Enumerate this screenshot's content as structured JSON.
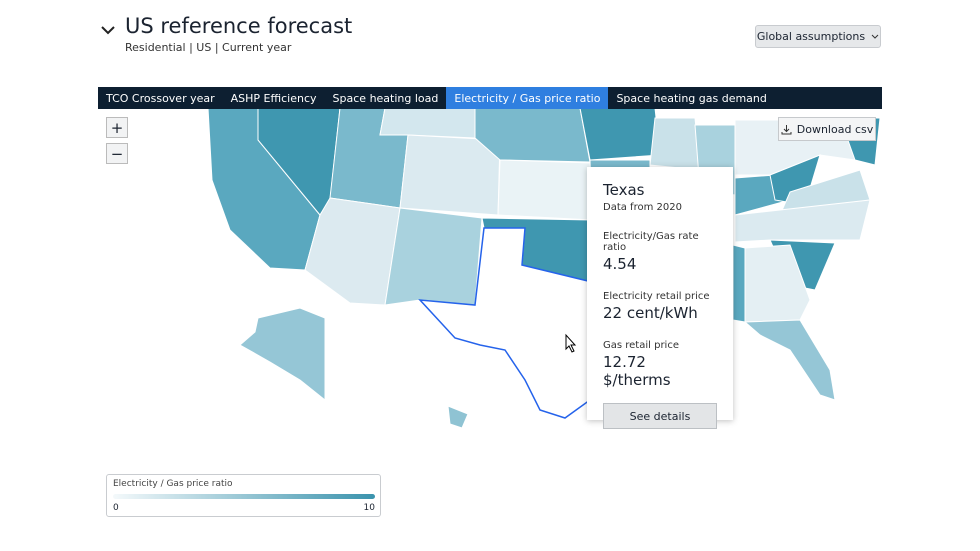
{
  "header": {
    "title": "US reference forecast",
    "subtitle": "Residential | US | Current year"
  },
  "global_button": "Global assumptions",
  "tabs": [
    "TCO Crossover year",
    "ASHP Efficiency",
    "Space heating load",
    "Electricity / Gas price ratio",
    "Space heating gas demand"
  ],
  "active_tab": 3,
  "zoom": [
    "+",
    "−"
  ],
  "download": "Download csv",
  "tooltip": {
    "title": "Texas",
    "subtitle": "Data from 2020",
    "items": [
      {
        "label": "Electricity/Gas rate ratio",
        "value": "4.54"
      },
      {
        "label": "Electricity retail price",
        "value": "22 cent/kWh"
      },
      {
        "label": "Gas retail price",
        "value": "12.72 $/therms"
      }
    ],
    "button": "See details"
  },
  "legend": {
    "title": "Electricity / Gas price ratio",
    "min": 0,
    "max": 10
  }
}
